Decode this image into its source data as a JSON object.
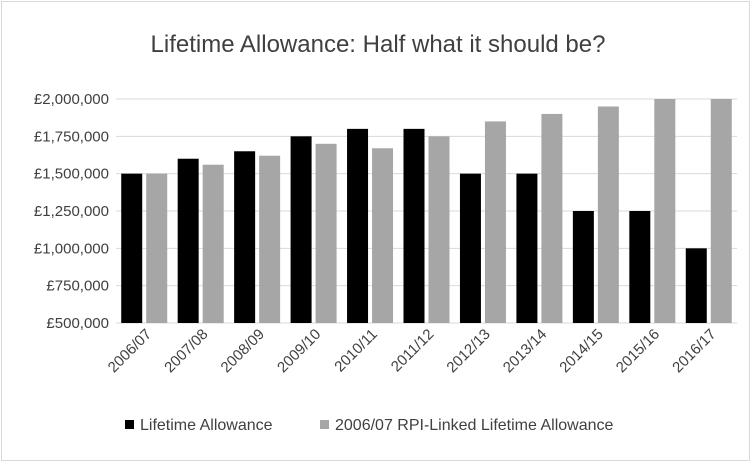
{
  "chart_data": {
    "type": "bar",
    "title": "Lifetime Allowance: Half what it should be?",
    "categories": [
      "2006/07",
      "2007/08",
      "2008/09",
      "2009/10",
      "2010/11",
      "2011/12",
      "2012/13",
      "2013/14",
      "2014/15",
      "2015/16",
      "2016/17"
    ],
    "series": [
      {
        "name": "Lifetime Allowance",
        "color": "#000000",
        "values": [
          1500000,
          1600000,
          1650000,
          1750000,
          1800000,
          1800000,
          1500000,
          1500000,
          1250000,
          1250000,
          1000000
        ]
      },
      {
        "name": "2006/07 RPI-Linked Lifetime Allowance",
        "color": "#a6a6a6",
        "values": [
          1500000,
          1560000,
          1620000,
          1700000,
          1670000,
          1750000,
          1850000,
          1900000,
          1950000,
          2000000,
          2000000
        ]
      }
    ],
    "y_ticks": [
      "£500,000",
      "£750,000",
      "£1,000,000",
      "£1,250,000",
      "£1,500,000",
      "£1,750,000",
      "£2,000,000"
    ],
    "ylim": [
      500000,
      2000000
    ],
    "y_tick_step": 250000,
    "grid": true,
    "legend_position": "bottom"
  }
}
